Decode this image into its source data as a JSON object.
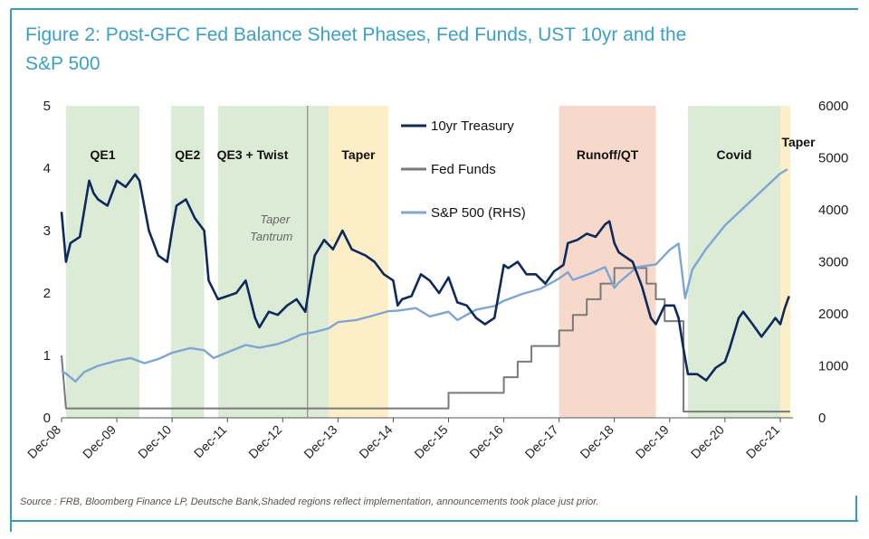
{
  "figure": {
    "title_line1": "Figure 2: Post-GFC Fed Balance Sheet Phases, Fed Funds, UST 10yr and the",
    "title_line2": "S&P 500",
    "source": "Source : FRB, Bloomberg Finance LP, Deutsche Bank,Shaded regions reflect implementation, announcements took place just prior."
  },
  "colors": {
    "title": "#3aa0c8",
    "accent": "#2f9fc6",
    "treasury": "#0e2a5c",
    "fedfunds": "#7a7a7a",
    "sp500": "#7ea6d4",
    "green_shade": "#dcebd6",
    "yellow_shade": "#fcefc7",
    "red_shade": "#f7d9cc"
  },
  "chart_data": {
    "type": "line",
    "x_range": [
      "Dec-08",
      "Mar-22"
    ],
    "x_ticks": [
      "Dec-08",
      "Dec-09",
      "Dec-10",
      "Dec-11",
      "Dec-12",
      "Dec-13",
      "Dec-14",
      "Dec-15",
      "Dec-16",
      "Dec-17",
      "Dec-18",
      "Dec-19",
      "Dec-20",
      "Dec-21"
    ],
    "ylim_left": [
      0,
      5
    ],
    "yticks_left": [
      "0",
      "1",
      "2",
      "3",
      "4",
      "5"
    ],
    "ylim_right": [
      0,
      6000
    ],
    "yticks_right": [
      "0",
      "1000",
      "2000",
      "3000",
      "4000",
      "5000",
      "6000"
    ],
    "legend": [
      {
        "name": "10yr Treasury",
        "color": "#0e2a5c"
      },
      {
        "name": "Fed Funds",
        "color": "#7a7a7a"
      },
      {
        "name": "S&P 500 (RHS)",
        "color": "#7ea6d4"
      }
    ],
    "phases": [
      {
        "label": "QE1",
        "start": 2009.0,
        "end": 2010.33,
        "shade": "green"
      },
      {
        "label": "QE2",
        "start": 2010.9,
        "end": 2011.5,
        "shade": "green"
      },
      {
        "label": "QE3 + Twist",
        "start": 2011.75,
        "end": 2013.0,
        "shade": "green"
      },
      {
        "label": "",
        "start": 2013.0,
        "end": 2013.75,
        "shade": "green"
      },
      {
        "label": "Taper",
        "start": 2013.75,
        "end": 2014.83,
        "shade": "yellow"
      },
      {
        "label": "Runoff/QT",
        "start": 2017.92,
        "end": 2019.67,
        "shade": "red"
      },
      {
        "label": "Covid",
        "start": 2020.25,
        "end": 2021.92,
        "shade": "green"
      },
      {
        "label": "Taper",
        "start": 2021.92,
        "end": 2022.1,
        "shade": "yellow"
      }
    ],
    "annotation": {
      "text_line1": "Taper",
      "text_line2": "Tantrum",
      "x": 2013.37
    },
    "series": [
      {
        "name": "10yr Treasury",
        "axis": "left",
        "points": [
          [
            2008.92,
            3.3
          ],
          [
            2009.0,
            2.5
          ],
          [
            2009.08,
            2.8
          ],
          [
            2009.25,
            2.9
          ],
          [
            2009.42,
            3.8
          ],
          [
            2009.5,
            3.6
          ],
          [
            2009.58,
            3.5
          ],
          [
            2009.75,
            3.4
          ],
          [
            2009.92,
            3.8
          ],
          [
            2010.08,
            3.7
          ],
          [
            2010.25,
            3.9
          ],
          [
            2010.33,
            3.8
          ],
          [
            2010.5,
            3.0
          ],
          [
            2010.67,
            2.6
          ],
          [
            2010.83,
            2.5
          ],
          [
            2010.92,
            3.0
          ],
          [
            2011.0,
            3.4
          ],
          [
            2011.17,
            3.5
          ],
          [
            2011.33,
            3.2
          ],
          [
            2011.5,
            3.0
          ],
          [
            2011.58,
            2.2
          ],
          [
            2011.75,
            1.9
          ],
          [
            2011.92,
            1.95
          ],
          [
            2012.08,
            2.0
          ],
          [
            2012.25,
            2.2
          ],
          [
            2012.42,
            1.6
          ],
          [
            2012.5,
            1.45
          ],
          [
            2012.67,
            1.7
          ],
          [
            2012.83,
            1.65
          ],
          [
            2013.0,
            1.8
          ],
          [
            2013.17,
            1.9
          ],
          [
            2013.33,
            1.7
          ],
          [
            2013.42,
            2.2
          ],
          [
            2013.5,
            2.6
          ],
          [
            2013.67,
            2.85
          ],
          [
            2013.83,
            2.7
          ],
          [
            2014.0,
            3.0
          ],
          [
            2014.17,
            2.7
          ],
          [
            2014.42,
            2.6
          ],
          [
            2014.58,
            2.5
          ],
          [
            2014.75,
            2.3
          ],
          [
            2014.92,
            2.2
          ],
          [
            2015.0,
            1.8
          ],
          [
            2015.08,
            1.9
          ],
          [
            2015.25,
            1.95
          ],
          [
            2015.42,
            2.3
          ],
          [
            2015.58,
            2.2
          ],
          [
            2015.75,
            2.0
          ],
          [
            2015.92,
            2.25
          ],
          [
            2016.08,
            1.85
          ],
          [
            2016.25,
            1.8
          ],
          [
            2016.42,
            1.6
          ],
          [
            2016.58,
            1.5
          ],
          [
            2016.75,
            1.6
          ],
          [
            2016.92,
            2.45
          ],
          [
            2017.0,
            2.4
          ],
          [
            2017.17,
            2.5
          ],
          [
            2017.33,
            2.3
          ],
          [
            2017.5,
            2.3
          ],
          [
            2017.67,
            2.15
          ],
          [
            2017.83,
            2.35
          ],
          [
            2018.0,
            2.45
          ],
          [
            2018.08,
            2.8
          ],
          [
            2018.25,
            2.85
          ],
          [
            2018.42,
            2.95
          ],
          [
            2018.58,
            2.9
          ],
          [
            2018.75,
            3.1
          ],
          [
            2018.83,
            3.15
          ],
          [
            2018.92,
            2.8
          ],
          [
            2019.0,
            2.65
          ],
          [
            2019.25,
            2.5
          ],
          [
            2019.42,
            2.1
          ],
          [
            2019.58,
            1.6
          ],
          [
            2019.67,
            1.5
          ],
          [
            2019.83,
            1.8
          ],
          [
            2020.0,
            1.8
          ],
          [
            2020.08,
            1.6
          ],
          [
            2020.17,
            1.1
          ],
          [
            2020.25,
            0.7
          ],
          [
            2020.42,
            0.7
          ],
          [
            2020.58,
            0.6
          ],
          [
            2020.75,
            0.8
          ],
          [
            2020.92,
            0.9
          ],
          [
            2021.0,
            1.1
          ],
          [
            2021.17,
            1.6
          ],
          [
            2021.25,
            1.7
          ],
          [
            2021.42,
            1.5
          ],
          [
            2021.58,
            1.3
          ],
          [
            2021.75,
            1.5
          ],
          [
            2021.83,
            1.6
          ],
          [
            2021.92,
            1.5
          ],
          [
            2022.0,
            1.75
          ],
          [
            2022.08,
            1.95
          ]
        ]
      },
      {
        "name": "Fed Funds",
        "axis": "left",
        "points": [
          [
            2008.92,
            1.0
          ],
          [
            2009.0,
            0.15
          ],
          [
            2015.92,
            0.15
          ],
          [
            2015.92,
            0.4
          ],
          [
            2016.92,
            0.4
          ],
          [
            2016.92,
            0.65
          ],
          [
            2017.17,
            0.65
          ],
          [
            2017.17,
            0.9
          ],
          [
            2017.42,
            0.9
          ],
          [
            2017.42,
            1.15
          ],
          [
            2017.92,
            1.15
          ],
          [
            2017.92,
            1.4
          ],
          [
            2018.17,
            1.4
          ],
          [
            2018.17,
            1.65
          ],
          [
            2018.42,
            1.65
          ],
          [
            2018.42,
            1.9
          ],
          [
            2018.67,
            1.9
          ],
          [
            2018.67,
            2.15
          ],
          [
            2018.92,
            2.15
          ],
          [
            2018.92,
            2.4
          ],
          [
            2019.5,
            2.4
          ],
          [
            2019.5,
            2.15
          ],
          [
            2019.67,
            2.15
          ],
          [
            2019.67,
            1.9
          ],
          [
            2019.83,
            1.9
          ],
          [
            2019.83,
            1.55
          ],
          [
            2020.17,
            1.55
          ],
          [
            2020.17,
            0.1
          ],
          [
            2022.1,
            0.1
          ]
        ]
      },
      {
        "name": "S&P 500 (RHS)",
        "axis": "right",
        "points": [
          [
            2008.92,
            900
          ],
          [
            2009.0,
            850
          ],
          [
            2009.17,
            700
          ],
          [
            2009.33,
            880
          ],
          [
            2009.58,
            1000
          ],
          [
            2009.92,
            1100
          ],
          [
            2010.17,
            1150
          ],
          [
            2010.42,
            1050
          ],
          [
            2010.67,
            1130
          ],
          [
            2010.92,
            1250
          ],
          [
            2011.25,
            1340
          ],
          [
            2011.5,
            1300
          ],
          [
            2011.67,
            1150
          ],
          [
            2011.92,
            1260
          ],
          [
            2012.25,
            1400
          ],
          [
            2012.5,
            1350
          ],
          [
            2012.83,
            1420
          ],
          [
            2013.0,
            1480
          ],
          [
            2013.25,
            1600
          ],
          [
            2013.5,
            1650
          ],
          [
            2013.75,
            1720
          ],
          [
            2013.92,
            1840
          ],
          [
            2014.25,
            1880
          ],
          [
            2014.5,
            1950
          ],
          [
            2014.83,
            2050
          ],
          [
            2015.0,
            2060
          ],
          [
            2015.33,
            2110
          ],
          [
            2015.58,
            1950
          ],
          [
            2015.92,
            2040
          ],
          [
            2016.08,
            1880
          ],
          [
            2016.42,
            2080
          ],
          [
            2016.75,
            2150
          ],
          [
            2016.92,
            2250
          ],
          [
            2017.25,
            2380
          ],
          [
            2017.58,
            2480
          ],
          [
            2017.92,
            2680
          ],
          [
            2018.08,
            2800
          ],
          [
            2018.17,
            2650
          ],
          [
            2018.5,
            2780
          ],
          [
            2018.75,
            2900
          ],
          [
            2018.92,
            2500
          ],
          [
            2019.0,
            2600
          ],
          [
            2019.33,
            2900
          ],
          [
            2019.67,
            2950
          ],
          [
            2019.92,
            3230
          ],
          [
            2020.08,
            3350
          ],
          [
            2020.2,
            2300
          ],
          [
            2020.33,
            2850
          ],
          [
            2020.58,
            3250
          ],
          [
            2020.92,
            3700
          ],
          [
            2021.17,
            3950
          ],
          [
            2021.42,
            4200
          ],
          [
            2021.67,
            4450
          ],
          [
            2021.92,
            4700
          ],
          [
            2022.05,
            4780
          ]
        ]
      }
    ]
  }
}
